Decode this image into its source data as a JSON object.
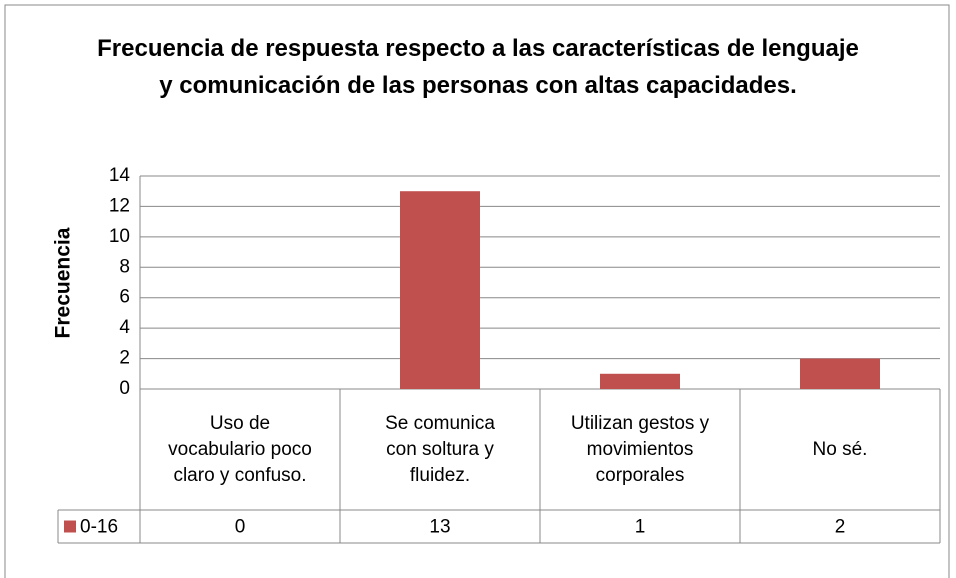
{
  "chart_data": {
    "type": "bar",
    "title": "Frecuencia de respuesta respecto a las características de lenguaje y comunicación de las personas con altas capacidades.",
    "y_label": "Frecuencia",
    "categories": [
      "Uso de vocabulario poco claro y confuso.",
      "Se comunica con soltura y fluidez.",
      "Utilizan gestos y movimientos corporales",
      "No sé."
    ],
    "series": [
      {
        "name": "0-16",
        "color": "#c0504d",
        "values": [
          0,
          13,
          1,
          2
        ]
      }
    ],
    "ylim": [
      0,
      14
    ],
    "yticks": [
      0,
      2,
      4,
      6,
      8,
      10,
      12,
      14
    ],
    "grid": true
  }
}
